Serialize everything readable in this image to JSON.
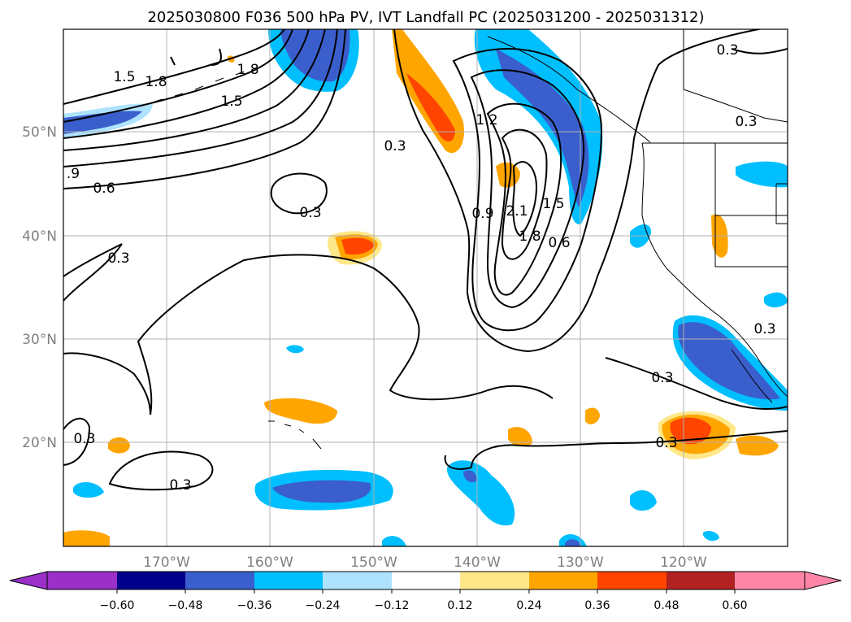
{
  "title": "2025030800 F036 500 hPa PV, IVT Landfall PC (2025031200 - 2025031312)",
  "lat_labels": [
    "50°N",
    "40°N",
    "30°N",
    "20°N"
  ],
  "lon_labels": [
    "170°W",
    "160°W",
    "150°W",
    "140°W",
    "130°W",
    "120°W"
  ],
  "contour_labels": [
    "1.5",
    "1.8",
    "1.8",
    "1.5",
    ".9",
    "0.6",
    "0.3",
    "0.3",
    "0.3",
    "1.2",
    "0.9",
    "2.1",
    "1.5",
    "1.8",
    "0.6",
    "0.3",
    "0.3",
    "0.3",
    "0.3",
    "0.3",
    "0.3",
    "0.3"
  ],
  "colorbar": {
    "ticks": [
      "−0.60",
      "−0.48",
      "−0.36",
      "−0.24",
      "−0.12",
      "0.12",
      "0.24",
      "0.36",
      "0.48",
      "0.60"
    ],
    "colors": [
      "#9a30c8",
      "#00008b",
      "#3a5fcd",
      "#00bfff",
      "#aee3ff",
      "#ffffff",
      "#ffe88a",
      "#ffa500",
      "#ff4500",
      "#b22222",
      "#ff85a8"
    ]
  },
  "fill_colors": {
    "neg_light": "#aee3ff",
    "neg_mid": "#00bfff",
    "neg_dark": "#3a5fcd",
    "pos_light": "#ffe88a",
    "pos_mid": "#ffa500",
    "pos_dark": "#ff4500"
  }
}
